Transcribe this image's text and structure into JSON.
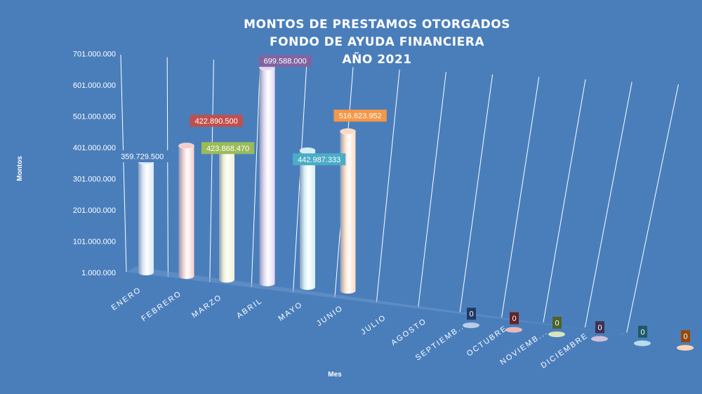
{
  "chart_data": {
    "type": "bar",
    "title": [
      "MONTOS  DE  PRESTAMOS  OTORGADOS",
      "FONDO  DE  AYUDA  FINANCIERA",
      "AÑO  2021"
    ],
    "xlabel": "Mes",
    "ylabel": "Montos",
    "categories": [
      "ENERO",
      "FEBRERO",
      "MARZO",
      "ABRIL",
      "MAYO",
      "JUNIO",
      "JULIO",
      "AGOSTO",
      "SEPTIEMB...",
      "OCTUBRE",
      "NOVIEMB...",
      "DICIEMBRE"
    ],
    "values": [
      359729500,
      422890500,
      423868470,
      699588000,
      442987333,
      516623952,
      0,
      0,
      0,
      0,
      0,
      0
    ],
    "value_labels": [
      "359.729.500",
      "422.890.500",
      "423.868.470",
      "699.588.000",
      "442.987.333",
      "516.623.952",
      "0",
      "0",
      "0",
      "0",
      "0",
      "0"
    ],
    "y_ticks": [
      "1.000.000",
      "101.000.000",
      "201.000.000",
      "301.000.000",
      "401.000.000",
      "501.000.000",
      "601.000.000",
      "701.000.000"
    ],
    "ylim": [
      1000000,
      701000000
    ],
    "grid": true,
    "legend": "none",
    "colors": {
      "background": "#4a7ebb",
      "bars": [
        "#dbe6f8",
        "#f4cdcb",
        "#eef2cf",
        "#e3d8f3",
        "#d4eef7",
        "#fbd9bf",
        "#b9cce4",
        "#e6b9b8",
        "#d7e4bd",
        "#ccc0da",
        "#b7dee8",
        "#fcd5b5"
      ],
      "label_boxes": [
        "#4a7ebb",
        "#c0504d",
        "#9bbb59",
        "#8064a2",
        "#4bacc6",
        "#f79646",
        "#1f3864",
        "#632523",
        "#4f6228",
        "#3f3151",
        "#205867",
        "#984807"
      ]
    }
  }
}
